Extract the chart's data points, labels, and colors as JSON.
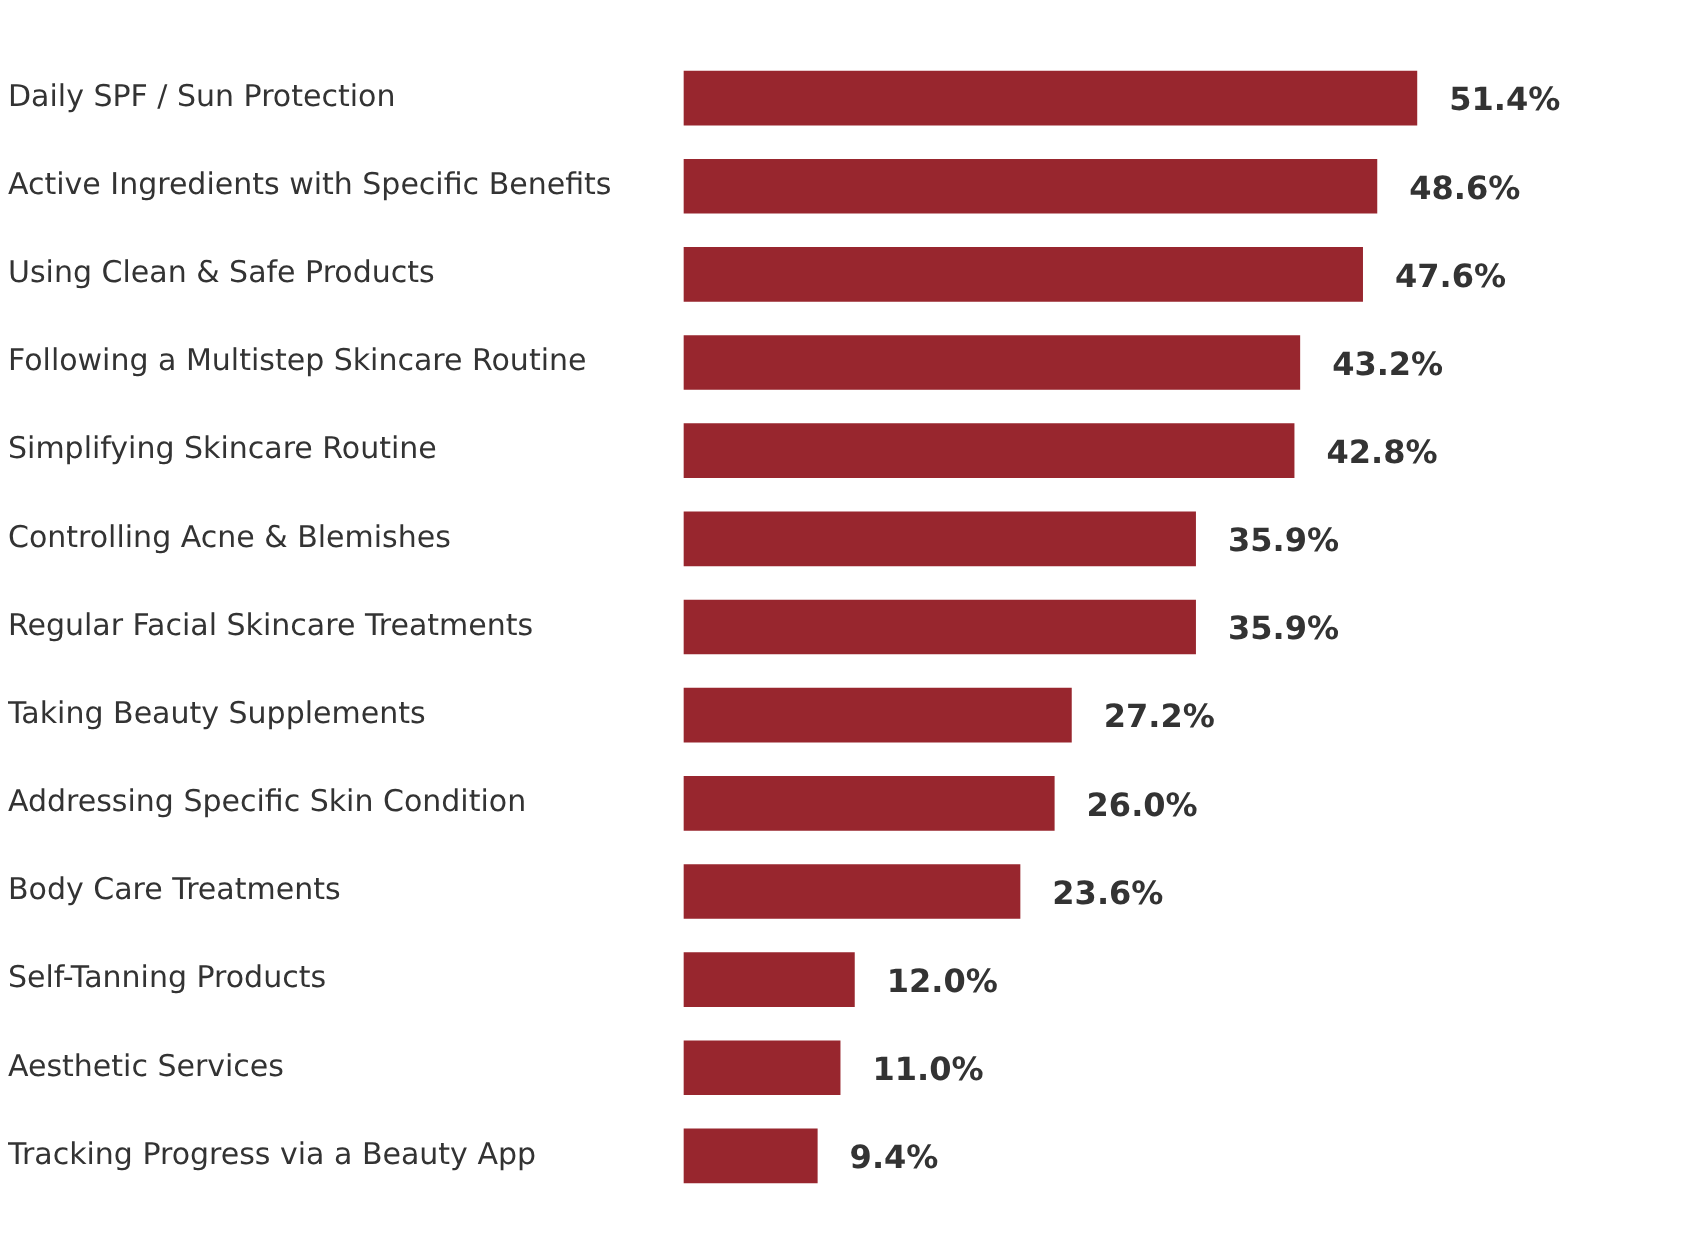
{
  "chart_data": {
    "type": "bar",
    "orientation": "horizontal",
    "categories": [
      "Daily SPF / Sun Protection",
      "Active Ingredients with Specific Benefits",
      "Using Clean & Safe Products",
      "Following a Multistep Skincare Routine",
      "Simplifying Skincare Routine",
      "Controlling Acne & Blemishes",
      "Regular Facial Skincare Treatments",
      "Taking Beauty Supplements",
      "Addressing Specific Skin Condition",
      "Body Care Treatments",
      "Self-Tanning Products",
      "Aesthetic Services",
      "Tracking Progress via a Beauty App"
    ],
    "values": [
      51.4,
      48.6,
      47.6,
      43.2,
      42.8,
      35.9,
      35.9,
      27.2,
      26.0,
      23.6,
      12.0,
      11.0,
      9.4
    ],
    "value_labels": [
      "51.4%",
      "48.6%",
      "47.6%",
      "43.2%",
      "42.8%",
      "35.9%",
      "35.9%",
      "27.2%",
      "26.0%",
      "23.6%",
      "12.0%",
      "11.0%",
      "9.4%"
    ],
    "color": "#98262e",
    "grid": false,
    "legend": false,
    "tick_labels": "y"
  }
}
